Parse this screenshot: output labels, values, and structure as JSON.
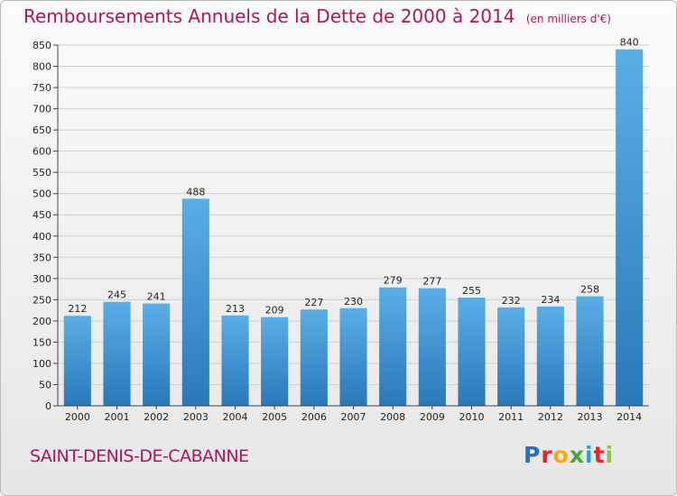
{
  "header": {
    "title": "Remboursements Annuels de la Dette de 2000 à 2014",
    "unit": "(en milliers d'€)"
  },
  "footer": {
    "commune": "SAINT-DENIS-DE-CABANNE",
    "logo": [
      "P",
      "r",
      "o",
      "x",
      "i",
      "t",
      "i"
    ]
  },
  "colors": {
    "title": "#a8185a",
    "bar_top": "#5aaee6",
    "bar_bottom": "#2a78b8",
    "grid": "#cfcfcf"
  },
  "chart_data": {
    "type": "bar",
    "title": "Remboursements Annuels de la Dette de 2000 à 2014",
    "xlabel": "",
    "ylabel": "",
    "ylim": [
      0,
      850
    ],
    "yticks": [
      0,
      50,
      100,
      150,
      200,
      250,
      300,
      350,
      400,
      450,
      500,
      550,
      600,
      650,
      700,
      750,
      800,
      850
    ],
    "grid": true,
    "data_labels": true,
    "categories": [
      "2000",
      "2001",
      "2002",
      "2003",
      "2004",
      "2005",
      "2006",
      "2007",
      "2008",
      "2009",
      "2010",
      "2011",
      "2012",
      "2013",
      "2014"
    ],
    "values": [
      212,
      245,
      241,
      488,
      213,
      209,
      227,
      230,
      279,
      277,
      255,
      232,
      234,
      258,
      840
    ]
  }
}
